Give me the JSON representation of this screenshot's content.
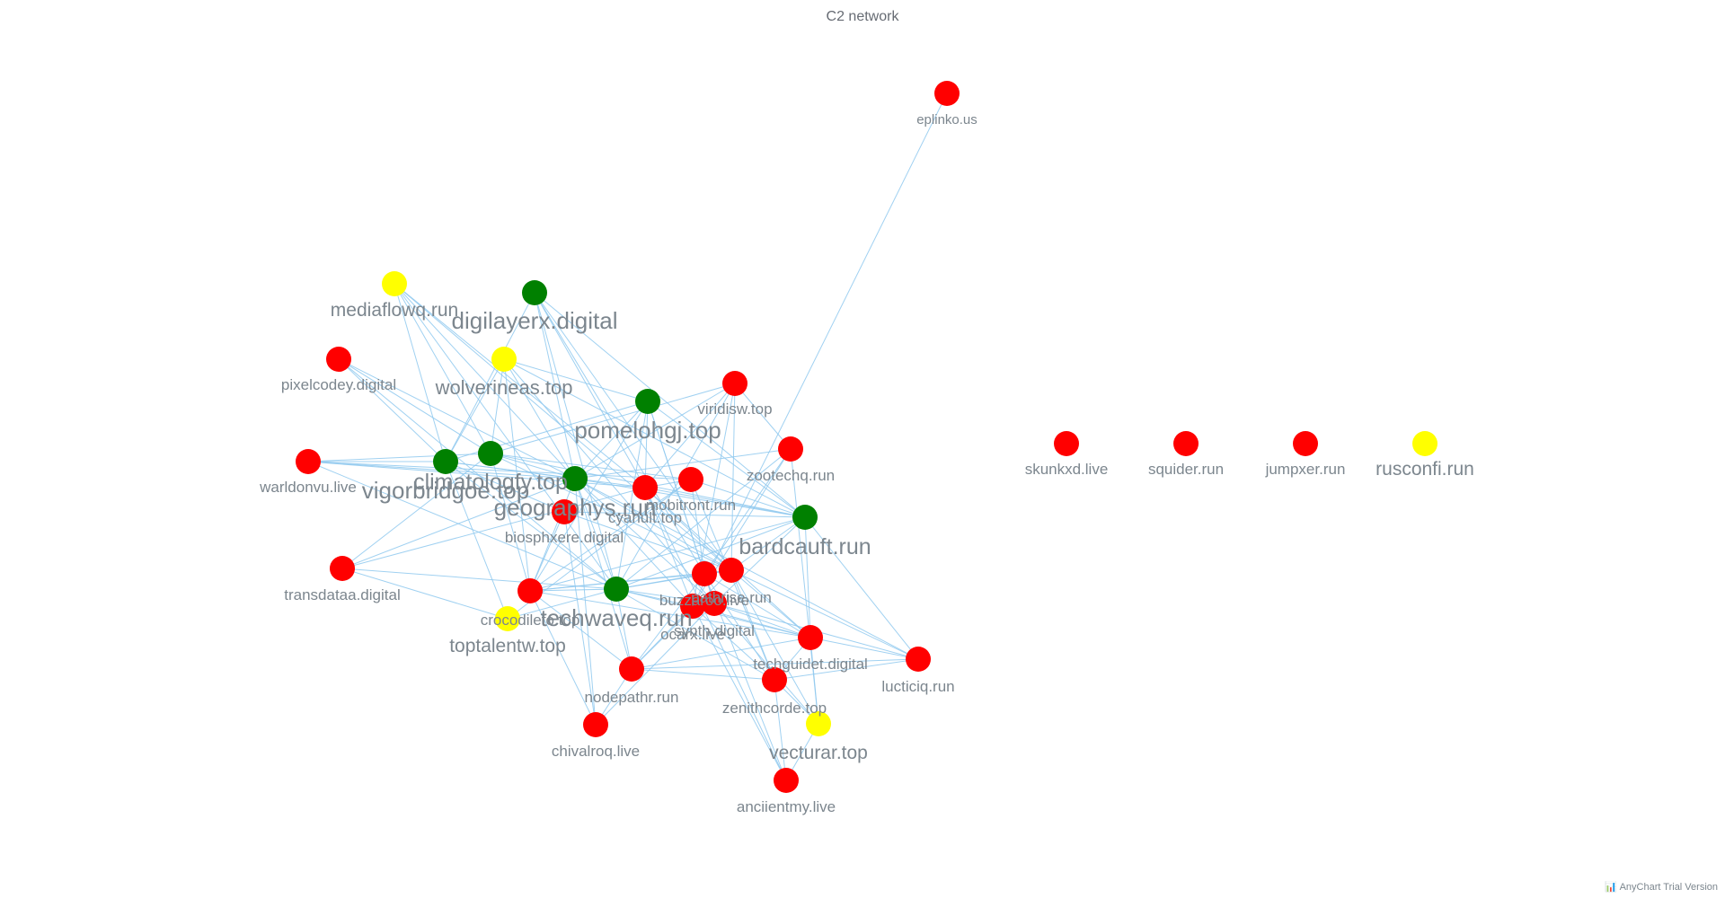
{
  "title": "C2 network",
  "credit": "AnyChart Trial Version",
  "colors": {
    "red": "#ff0000",
    "green": "#008000",
    "yellow": "#ffff00",
    "edge": "#90c9ef",
    "label": "#7c868e"
  },
  "nodes": [
    {
      "id": "eplinko.us",
      "group": "red"
    },
    {
      "id": "mediaflowq.run",
      "group": "yellow"
    },
    {
      "id": "digilayerx.digital",
      "group": "green"
    },
    {
      "id": "pixelcodey.digital",
      "group": "red"
    },
    {
      "id": "wolverineas.top",
      "group": "yellow"
    },
    {
      "id": "viridisw.top",
      "group": "red"
    },
    {
      "id": "pomelohgj.top",
      "group": "green"
    },
    {
      "id": "warldonvu.live",
      "group": "red"
    },
    {
      "id": "climatologfy.top",
      "group": "green"
    },
    {
      "id": "vigorbridgoe.top",
      "group": "green"
    },
    {
      "id": "zootechq.run",
      "group": "red"
    },
    {
      "id": "geographys.run",
      "group": "green"
    },
    {
      "id": "mobitront.run",
      "group": "red"
    },
    {
      "id": "cyanult.top",
      "group": "red"
    },
    {
      "id": "biosphxere.digital",
      "group": "red"
    },
    {
      "id": "bardcauft.run",
      "group": "green"
    },
    {
      "id": "transdataa.digital",
      "group": "red"
    },
    {
      "id": "crocodilefo.top",
      "group": "red"
    },
    {
      "id": "techwaveq.run",
      "group": "green"
    },
    {
      "id": "pathrise.run",
      "group": "red"
    },
    {
      "id": "buzzaroo.live",
      "group": "red"
    },
    {
      "id": "synth.digital",
      "group": "red"
    },
    {
      "id": "ocarx.live",
      "group": "red"
    },
    {
      "id": "toptalentw.top",
      "group": "yellow"
    },
    {
      "id": "techguidet.digital",
      "group": "red"
    },
    {
      "id": "lucticiq.run",
      "group": "red"
    },
    {
      "id": "nodepathr.run",
      "group": "red"
    },
    {
      "id": "zenithcorde.top",
      "group": "red"
    },
    {
      "id": "chivalroq.live",
      "group": "red"
    },
    {
      "id": "vecturar.top",
      "group": "yellow"
    },
    {
      "id": "anciientmy.live",
      "group": "red"
    },
    {
      "id": "skunkxd.live",
      "group": "red"
    },
    {
      "id": "squider.run",
      "group": "red"
    },
    {
      "id": "jumpxer.run",
      "group": "red"
    },
    {
      "id": "rusconfi.run",
      "group": "yellow"
    }
  ],
  "edges": [
    [
      "eplinko.us",
      "ocarx.live"
    ],
    [
      "mediaflowq.run",
      "vigorbridgoe.top"
    ],
    [
      "mediaflowq.run",
      "geographys.run"
    ],
    [
      "mediaflowq.run",
      "cyanult.top"
    ],
    [
      "mediaflowq.run",
      "techwaveq.run"
    ],
    [
      "mediaflowq.run",
      "pathrise.run"
    ],
    [
      "mediaflowq.run",
      "climatologfy.top"
    ],
    [
      "digilayerx.digital",
      "vigorbridgoe.top"
    ],
    [
      "digilayerx.digital",
      "geographys.run"
    ],
    [
      "digilayerx.digital",
      "bardcauft.run"
    ],
    [
      "digilayerx.digital",
      "techwaveq.run"
    ],
    [
      "digilayerx.digital",
      "buzzaroo.live"
    ],
    [
      "digilayerx.digital",
      "pathrise.run"
    ],
    [
      "digilayerx.digital",
      "cyanult.top"
    ],
    [
      "pixelcodey.digital",
      "vigorbridgoe.top"
    ],
    [
      "pixelcodey.digital",
      "climatologfy.top"
    ],
    [
      "pixelcodey.digital",
      "geographys.run"
    ],
    [
      "pixelcodey.digital",
      "techwaveq.run"
    ],
    [
      "wolverineas.top",
      "climatologfy.top"
    ],
    [
      "wolverineas.top",
      "pomelohgj.top"
    ],
    [
      "wolverineas.top",
      "geographys.run"
    ],
    [
      "wolverineas.top",
      "bardcauft.run"
    ],
    [
      "wolverineas.top",
      "crocodilefo.top"
    ],
    [
      "wolverineas.top",
      "synth.digital"
    ],
    [
      "wolverineas.top",
      "vigorbridgoe.top"
    ],
    [
      "viridisw.top",
      "geographys.run"
    ],
    [
      "viridisw.top",
      "cyanult.top"
    ],
    [
      "viridisw.top",
      "pathrise.run"
    ],
    [
      "viridisw.top",
      "ocarx.live"
    ],
    [
      "viridisw.top",
      "zootechq.run"
    ],
    [
      "viridisw.top",
      "climatologfy.top"
    ],
    [
      "viridisw.top",
      "techwaveq.run"
    ],
    [
      "pomelohgj.top",
      "vigorbridgoe.top"
    ],
    [
      "pomelohgj.top",
      "geographys.run"
    ],
    [
      "pomelohgj.top",
      "buzzaroo.live"
    ],
    [
      "pomelohgj.top",
      "techwaveq.run"
    ],
    [
      "pomelohgj.top",
      "crocodilefo.top"
    ],
    [
      "pomelohgj.top",
      "bardcauft.run"
    ],
    [
      "pomelohgj.top",
      "cyanult.top"
    ],
    [
      "pomelohgj.top",
      "synth.digital"
    ],
    [
      "warldonvu.live",
      "vigorbridgoe.top"
    ],
    [
      "warldonvu.live",
      "climatologfy.top"
    ],
    [
      "warldonvu.live",
      "geographys.run"
    ],
    [
      "warldonvu.live",
      "cyanult.top"
    ],
    [
      "warldonvu.live",
      "mobitront.run"
    ],
    [
      "warldonvu.live",
      "techwaveq.run"
    ],
    [
      "climatologfy.top",
      "geographys.run"
    ],
    [
      "climatologfy.top",
      "mobitront.run"
    ],
    [
      "climatologfy.top",
      "bardcauft.run"
    ],
    [
      "climatologfy.top",
      "pathrise.run"
    ],
    [
      "climatologfy.top",
      "crocodilefo.top"
    ],
    [
      "vigorbridgoe.top",
      "biosphxere.digital"
    ],
    [
      "vigorbridgoe.top",
      "techwaveq.run"
    ],
    [
      "vigorbridgoe.top",
      "toptalentw.top"
    ],
    [
      "vigorbridgoe.top",
      "geographys.run"
    ],
    [
      "vigorbridgoe.top",
      "cyanult.top"
    ],
    [
      "zootechq.run",
      "geographys.run"
    ],
    [
      "zootechq.run",
      "ocarx.live"
    ],
    [
      "zootechq.run",
      "buzzaroo.live"
    ],
    [
      "zootechq.run",
      "vecturar.top"
    ],
    [
      "zootechq.run",
      "techwaveq.run"
    ],
    [
      "geographys.run",
      "bardcauft.run"
    ],
    [
      "geographys.run",
      "techwaveq.run"
    ],
    [
      "geographys.run",
      "pathrise.run"
    ],
    [
      "geographys.run",
      "synth.digital"
    ],
    [
      "geographys.run",
      "ocarx.live"
    ],
    [
      "geographys.run",
      "crocodilefo.top"
    ],
    [
      "geographys.run",
      "nodepathr.run"
    ],
    [
      "geographys.run",
      "lucticiq.run"
    ],
    [
      "geographys.run",
      "chivalroq.live"
    ],
    [
      "mobitront.run",
      "buzzaroo.live"
    ],
    [
      "mobitront.run",
      "cyanult.top"
    ],
    [
      "mobitront.run",
      "bardcauft.run"
    ],
    [
      "mobitront.run",
      "zenithcorde.top"
    ],
    [
      "mobitront.run",
      "crocodilefo.top"
    ],
    [
      "mobitront.run",
      "toptalentw.top"
    ],
    [
      "cyanult.top",
      "bardcauft.run"
    ],
    [
      "cyanult.top",
      "ocarx.live"
    ],
    [
      "cyanult.top",
      "techguidet.digital"
    ],
    [
      "cyanult.top",
      "pathrise.run"
    ],
    [
      "cyanult.top",
      "anciientmy.live"
    ],
    [
      "biosphxere.digital",
      "pathrise.run"
    ],
    [
      "biosphxere.digital",
      "chivalroq.live"
    ],
    [
      "biosphxere.digital",
      "crocodilefo.top"
    ],
    [
      "biosphxere.digital",
      "bardcauft.run"
    ],
    [
      "bardcauft.run",
      "techwaveq.run"
    ],
    [
      "bardcauft.run",
      "synth.digital"
    ],
    [
      "bardcauft.run",
      "techguidet.digital"
    ],
    [
      "bardcauft.run",
      "lucticiq.run"
    ],
    [
      "bardcauft.run",
      "crocodilefo.top"
    ],
    [
      "bardcauft.run",
      "pathrise.run"
    ],
    [
      "transdataa.digital",
      "geographys.run"
    ],
    [
      "transdataa.digital",
      "techwaveq.run"
    ],
    [
      "transdataa.digital",
      "toptalentw.top"
    ],
    [
      "transdataa.digital",
      "climatologfy.top"
    ],
    [
      "transdataa.digital",
      "cyanult.top"
    ],
    [
      "crocodilefo.top",
      "techwaveq.run"
    ],
    [
      "crocodilefo.top",
      "pathrise.run"
    ],
    [
      "crocodilefo.top",
      "techguidet.digital"
    ],
    [
      "crocodilefo.top",
      "nodepathr.run"
    ],
    [
      "crocodilefo.top",
      "buzzaroo.live"
    ],
    [
      "techwaveq.run",
      "pathrise.run"
    ],
    [
      "techwaveq.run",
      "buzzaroo.live"
    ],
    [
      "techwaveq.run",
      "ocarx.live"
    ],
    [
      "techwaveq.run",
      "synth.digital"
    ],
    [
      "techwaveq.run",
      "zenithcorde.top"
    ],
    [
      "techwaveq.run",
      "techguidet.digital"
    ],
    [
      "techwaveq.run",
      "toptalentw.top"
    ],
    [
      "techwaveq.run",
      "nodepathr.run"
    ],
    [
      "pathrise.run",
      "buzzaroo.live"
    ],
    [
      "pathrise.run",
      "techguidet.digital"
    ],
    [
      "pathrise.run",
      "lucticiq.run"
    ],
    [
      "pathrise.run",
      "zenithcorde.top"
    ],
    [
      "pathrise.run",
      "vecturar.top"
    ],
    [
      "pathrise.run",
      "nodepathr.run"
    ],
    [
      "buzzaroo.live",
      "synth.digital"
    ],
    [
      "buzzaroo.live",
      "techguidet.digital"
    ],
    [
      "buzzaroo.live",
      "zenithcorde.top"
    ],
    [
      "buzzaroo.live",
      "anciientmy.live"
    ],
    [
      "buzzaroo.live",
      "nodepathr.run"
    ],
    [
      "synth.digital",
      "techguidet.digital"
    ],
    [
      "synth.digital",
      "lucticiq.run"
    ],
    [
      "synth.digital",
      "vecturar.top"
    ],
    [
      "synth.digital",
      "chivalroq.live"
    ],
    [
      "ocarx.live",
      "zenithcorde.top"
    ],
    [
      "ocarx.live",
      "nodepathr.run"
    ],
    [
      "ocarx.live",
      "techguidet.digital"
    ],
    [
      "ocarx.live",
      "anciientmy.live"
    ],
    [
      "techguidet.digital",
      "lucticiq.run"
    ],
    [
      "techguidet.digital",
      "zenithcorde.top"
    ],
    [
      "techguidet.digital",
      "vecturar.top"
    ],
    [
      "techguidet.digital",
      "nodepathr.run"
    ],
    [
      "lucticiq.run",
      "zenithcorde.top"
    ],
    [
      "lucticiq.run",
      "nodepathr.run"
    ],
    [
      "nodepathr.run",
      "zenithcorde.top"
    ],
    [
      "nodepathr.run",
      "chivalroq.live"
    ],
    [
      "zenithcorde.top",
      "vecturar.top"
    ],
    [
      "zenithcorde.top",
      "anciientmy.live"
    ],
    [
      "chivalroq.live",
      "crocodilefo.top"
    ],
    [
      "vecturar.top",
      "anciientmy.live"
    ]
  ]
}
